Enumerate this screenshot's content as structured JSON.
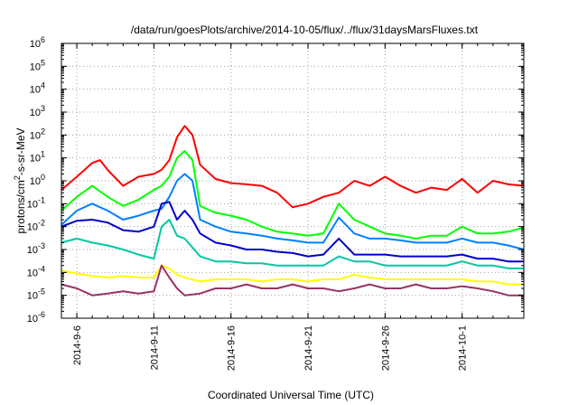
{
  "chart_data": {
    "type": "line",
    "title": "/data/run/goesPlots/archive/2014-10-05/flux/../flux/31daysMarsFluxes.txt",
    "xlabel": "Coordinated Universal Time (UTC)",
    "ylabel": {
      "base": "protons/cm",
      "sup": "2",
      "rest": "-s-sr-MeV"
    },
    "y_scale": "log",
    "ylim": [
      1e-06,
      1000000.0
    ],
    "xlim": [
      "2014-09-05",
      "2014-10-05"
    ],
    "y_ticks": [
      {
        "value": 1e-06,
        "base": "10",
        "exp": "-6"
      },
      {
        "value": 1e-05,
        "base": "10",
        "exp": "-5"
      },
      {
        "value": 0.0001,
        "base": "10",
        "exp": "-4"
      },
      {
        "value": 0.001,
        "base": "10",
        "exp": "-3"
      },
      {
        "value": 0.01,
        "base": "10",
        "exp": "-2"
      },
      {
        "value": 0.1,
        "base": "10",
        "exp": "-1"
      },
      {
        "value": 1,
        "base": "10",
        "exp": "0"
      },
      {
        "value": 10.0,
        "base": "10",
        "exp": "1"
      },
      {
        "value": 100.0,
        "base": "10",
        "exp": "2"
      },
      {
        "value": 1000.0,
        "base": "10",
        "exp": "3"
      },
      {
        "value": 10000.0,
        "base": "10",
        "exp": "4"
      },
      {
        "value": 100000.0,
        "base": "10",
        "exp": "5"
      },
      {
        "value": 1000000.0,
        "base": "10",
        "exp": "6"
      }
    ],
    "x_ticks": [
      {
        "date": "2014-09-06",
        "label": "2014-9-6"
      },
      {
        "date": "2014-09-11",
        "label": "2014-9-11"
      },
      {
        "date": "2014-09-16",
        "label": "2014-9-16"
      },
      {
        "date": "2014-09-21",
        "label": "2014-9-21"
      },
      {
        "date": "2014-09-26",
        "label": "2014-9-26"
      },
      {
        "date": "2014-10-01",
        "label": "2014-10-1"
      }
    ],
    "grid": true,
    "series": [
      {
        "color": "#ff0000",
        "points": [
          [
            "2014-09-05",
            0.4
          ],
          [
            "2014-09-06",
            1.5
          ],
          [
            "2014-09-07",
            6
          ],
          [
            "2014-09-07T12:00",
            8
          ],
          [
            "2014-09-08",
            3
          ],
          [
            "2014-09-09",
            0.6
          ],
          [
            "2014-09-10",
            1.5
          ],
          [
            "2014-09-11",
            2
          ],
          [
            "2014-09-11T12:00",
            3
          ],
          [
            "2014-09-12",
            8
          ],
          [
            "2014-09-12T12:00",
            80
          ],
          [
            "2014-09-13",
            250
          ],
          [
            "2014-09-13T12:00",
            100
          ],
          [
            "2014-09-14",
            5
          ],
          [
            "2014-09-15",
            1.2
          ],
          [
            "2014-09-16",
            0.8
          ],
          [
            "2014-09-17",
            0.7
          ],
          [
            "2014-09-18",
            0.6
          ],
          [
            "2014-09-19",
            0.3
          ],
          [
            "2014-09-20",
            0.07
          ],
          [
            "2014-09-21",
            0.1
          ],
          [
            "2014-09-22",
            0.2
          ],
          [
            "2014-09-23",
            0.3
          ],
          [
            "2014-09-24",
            1
          ],
          [
            "2014-09-25",
            0.6
          ],
          [
            "2014-09-26",
            1.5
          ],
          [
            "2014-09-27",
            0.6
          ],
          [
            "2014-09-28",
            0.3
          ],
          [
            "2014-09-29",
            0.5
          ],
          [
            "2014-09-30",
            0.4
          ],
          [
            "2014-10-01",
            1.2
          ],
          [
            "2014-10-02",
            0.3
          ],
          [
            "2014-10-03",
            1
          ],
          [
            "2014-10-04",
            0.7
          ],
          [
            "2014-10-05",
            0.6
          ]
        ]
      },
      {
        "color": "#00ff00",
        "points": [
          [
            "2014-09-05",
            0.05
          ],
          [
            "2014-09-06",
            0.2
          ],
          [
            "2014-09-07",
            0.6
          ],
          [
            "2014-09-08",
            0.2
          ],
          [
            "2014-09-09",
            0.08
          ],
          [
            "2014-09-10",
            0.15
          ],
          [
            "2014-09-11",
            0.4
          ],
          [
            "2014-09-11T12:00",
            0.6
          ],
          [
            "2014-09-12",
            1.5
          ],
          [
            "2014-09-12T12:00",
            10
          ],
          [
            "2014-09-13",
            20
          ],
          [
            "2014-09-13T12:00",
            8
          ],
          [
            "2014-09-14",
            0.08
          ],
          [
            "2014-09-15",
            0.04
          ],
          [
            "2014-09-16",
            0.03
          ],
          [
            "2014-09-17",
            0.02
          ],
          [
            "2014-09-18",
            0.01
          ],
          [
            "2014-09-19",
            0.006
          ],
          [
            "2014-09-20",
            0.005
          ],
          [
            "2014-09-21",
            0.004
          ],
          [
            "2014-09-22",
            0.005
          ],
          [
            "2014-09-23",
            0.1
          ],
          [
            "2014-09-24",
            0.02
          ],
          [
            "2014-09-25",
            0.01
          ],
          [
            "2014-09-26",
            0.005
          ],
          [
            "2014-09-27",
            0.004
          ],
          [
            "2014-09-28",
            0.003
          ],
          [
            "2014-09-29",
            0.004
          ],
          [
            "2014-09-30",
            0.004
          ],
          [
            "2014-10-01",
            0.01
          ],
          [
            "2014-10-02",
            0.005
          ],
          [
            "2014-10-03",
            0.005
          ],
          [
            "2014-10-04",
            0.006
          ],
          [
            "2014-10-05",
            0.009
          ]
        ]
      },
      {
        "color": "#0080ff",
        "points": [
          [
            "2014-09-05",
            0.012
          ],
          [
            "2014-09-06",
            0.05
          ],
          [
            "2014-09-07",
            0.1
          ],
          [
            "2014-09-08",
            0.05
          ],
          [
            "2014-09-09",
            0.02
          ],
          [
            "2014-09-10",
            0.03
          ],
          [
            "2014-09-11",
            0.05
          ],
          [
            "2014-09-11T12:00",
            0.06
          ],
          [
            "2014-09-12",
            0.2
          ],
          [
            "2014-09-12T12:00",
            1
          ],
          [
            "2014-09-13",
            2
          ],
          [
            "2014-09-13T12:00",
            1
          ],
          [
            "2014-09-14",
            0.02
          ],
          [
            "2014-09-15",
            0.01
          ],
          [
            "2014-09-16",
            0.006
          ],
          [
            "2014-09-17",
            0.005
          ],
          [
            "2014-09-18",
            0.004
          ],
          [
            "2014-09-19",
            0.003
          ],
          [
            "2014-09-20",
            0.0025
          ],
          [
            "2014-09-21",
            0.002
          ],
          [
            "2014-09-22",
            0.002
          ],
          [
            "2014-09-23",
            0.025
          ],
          [
            "2014-09-24",
            0.005
          ],
          [
            "2014-09-25",
            0.003
          ],
          [
            "2014-09-26",
            0.003
          ],
          [
            "2014-09-27",
            0.0025
          ],
          [
            "2014-09-28",
            0.002
          ],
          [
            "2014-09-29",
            0.002
          ],
          [
            "2014-09-30",
            0.002
          ],
          [
            "2014-10-01",
            0.003
          ],
          [
            "2014-10-02",
            0.002
          ],
          [
            "2014-10-03",
            0.002
          ],
          [
            "2014-10-04",
            0.0015
          ],
          [
            "2014-10-05",
            0.001
          ]
        ]
      },
      {
        "color": "#0000cc",
        "points": [
          [
            "2014-09-05",
            0.01
          ],
          [
            "2014-09-06",
            0.018
          ],
          [
            "2014-09-07",
            0.02
          ],
          [
            "2014-09-08",
            0.015
          ],
          [
            "2014-09-09",
            0.007
          ],
          [
            "2014-09-10",
            0.006
          ],
          [
            "2014-09-11",
            0.01
          ],
          [
            "2014-09-11T12:00",
            0.1
          ],
          [
            "2014-09-12",
            0.12
          ],
          [
            "2014-09-12T12:00",
            0.02
          ],
          [
            "2014-09-13",
            0.05
          ],
          [
            "2014-09-13T12:00",
            0.02
          ],
          [
            "2014-09-14",
            0.005
          ],
          [
            "2014-09-15",
            0.002
          ],
          [
            "2014-09-16",
            0.0015
          ],
          [
            "2014-09-17",
            0.001
          ],
          [
            "2014-09-18",
            0.001
          ],
          [
            "2014-09-19",
            0.0008
          ],
          [
            "2014-09-20",
            0.0007
          ],
          [
            "2014-09-21",
            0.0005
          ],
          [
            "2014-09-22",
            0.0006
          ],
          [
            "2014-09-23",
            0.003
          ],
          [
            "2014-09-24",
            0.0006
          ],
          [
            "2014-09-25",
            0.0006
          ],
          [
            "2014-09-26",
            0.0006
          ],
          [
            "2014-09-27",
            0.0005
          ],
          [
            "2014-09-28",
            0.0005
          ],
          [
            "2014-09-29",
            0.0005
          ],
          [
            "2014-09-30",
            0.0005
          ],
          [
            "2014-10-01",
            0.0006
          ],
          [
            "2014-10-02",
            0.0004
          ],
          [
            "2014-10-03",
            0.0004
          ],
          [
            "2014-10-04",
            0.0003
          ],
          [
            "2014-10-05",
            0.0003
          ]
        ]
      },
      {
        "color": "#00c8a0",
        "points": [
          [
            "2014-09-05",
            0.002
          ],
          [
            "2014-09-06",
            0.003
          ],
          [
            "2014-09-07",
            0.002
          ],
          [
            "2014-09-08",
            0.0015
          ],
          [
            "2014-09-09",
            0.001
          ],
          [
            "2014-09-10",
            0.0006
          ],
          [
            "2014-09-11",
            0.0004
          ],
          [
            "2014-09-11T12:00",
            0.01
          ],
          [
            "2014-09-12",
            0.02
          ],
          [
            "2014-09-12T12:00",
            0.004
          ],
          [
            "2014-09-13",
            0.003
          ],
          [
            "2014-09-14",
            0.0005
          ],
          [
            "2014-09-15",
            0.0003
          ],
          [
            "2014-09-16",
            0.0003
          ],
          [
            "2014-09-17",
            0.00025
          ],
          [
            "2014-09-18",
            0.00025
          ],
          [
            "2014-09-19",
            0.0002
          ],
          [
            "2014-09-20",
            0.0002
          ],
          [
            "2014-09-21",
            0.0002
          ],
          [
            "2014-09-22",
            0.0002
          ],
          [
            "2014-09-23",
            0.0005
          ],
          [
            "2014-09-24",
            0.0003
          ],
          [
            "2014-09-25",
            0.0003
          ],
          [
            "2014-09-26",
            0.0002
          ],
          [
            "2014-09-27",
            0.0002
          ],
          [
            "2014-09-28",
            0.0002
          ],
          [
            "2014-09-29",
            0.0002
          ],
          [
            "2014-09-30",
            0.0002
          ],
          [
            "2014-10-01",
            0.0003
          ],
          [
            "2014-10-02",
            0.0002
          ],
          [
            "2014-10-03",
            0.0002
          ],
          [
            "2014-10-04",
            0.00015
          ],
          [
            "2014-10-05",
            0.00015
          ]
        ]
      },
      {
        "color": "#ffff00",
        "points": [
          [
            "2014-09-05",
            0.00012
          ],
          [
            "2014-09-06",
            9e-05
          ],
          [
            "2014-09-07",
            7e-05
          ],
          [
            "2014-09-08",
            6e-05
          ],
          [
            "2014-09-09",
            7e-05
          ],
          [
            "2014-09-10",
            6e-05
          ],
          [
            "2014-09-11",
            6e-05
          ],
          [
            "2014-09-11T12:00",
            0.0002
          ],
          [
            "2014-09-12",
            0.00015
          ],
          [
            "2014-09-12T12:00",
            8e-05
          ],
          [
            "2014-09-13",
            6e-05
          ],
          [
            "2014-09-14",
            4e-05
          ],
          [
            "2014-09-15",
            5e-05
          ],
          [
            "2014-09-16",
            5e-05
          ],
          [
            "2014-09-17",
            5e-05
          ],
          [
            "2014-09-18",
            4e-05
          ],
          [
            "2014-09-19",
            5e-05
          ],
          [
            "2014-09-20",
            5e-05
          ],
          [
            "2014-09-21",
            4e-05
          ],
          [
            "2014-09-22",
            5e-05
          ],
          [
            "2014-09-23",
            5e-05
          ],
          [
            "2014-09-24",
            8e-05
          ],
          [
            "2014-09-25",
            6e-05
          ],
          [
            "2014-09-26",
            5e-05
          ],
          [
            "2014-09-27",
            5e-05
          ],
          [
            "2014-09-28",
            5e-05
          ],
          [
            "2014-09-29",
            5e-05
          ],
          [
            "2014-09-30",
            5e-05
          ],
          [
            "2014-10-01",
            5e-05
          ],
          [
            "2014-10-02",
            4e-05
          ],
          [
            "2014-10-03",
            4e-05
          ],
          [
            "2014-10-04",
            3e-05
          ],
          [
            "2014-10-05",
            3e-05
          ]
        ]
      },
      {
        "color": "#993366",
        "points": [
          [
            "2014-09-05",
            3e-05
          ],
          [
            "2014-09-06",
            2e-05
          ],
          [
            "2014-09-07",
            1e-05
          ],
          [
            "2014-09-08",
            1.2e-05
          ],
          [
            "2014-09-09",
            1.5e-05
          ],
          [
            "2014-09-10",
            1.2e-05
          ],
          [
            "2014-09-11",
            1.5e-05
          ],
          [
            "2014-09-11T12:00",
            0.0002
          ],
          [
            "2014-09-12",
            6e-05
          ],
          [
            "2014-09-12T12:00",
            2e-05
          ],
          [
            "2014-09-13",
            1e-05
          ],
          [
            "2014-09-14",
            1.2e-05
          ],
          [
            "2014-09-15",
            2e-05
          ],
          [
            "2014-09-16",
            2e-05
          ],
          [
            "2014-09-17",
            3e-05
          ],
          [
            "2014-09-18",
            2e-05
          ],
          [
            "2014-09-19",
            2e-05
          ],
          [
            "2014-09-20",
            3e-05
          ],
          [
            "2014-09-21",
            2e-05
          ],
          [
            "2014-09-22",
            2e-05
          ],
          [
            "2014-09-23",
            1.5e-05
          ],
          [
            "2014-09-24",
            2e-05
          ],
          [
            "2014-09-25",
            3e-05
          ],
          [
            "2014-09-26",
            2e-05
          ],
          [
            "2014-09-27",
            2e-05
          ],
          [
            "2014-09-28",
            3e-05
          ],
          [
            "2014-09-29",
            2e-05
          ],
          [
            "2014-09-30",
            2e-05
          ],
          [
            "2014-10-01",
            2.5e-05
          ],
          [
            "2014-10-02",
            2e-05
          ],
          [
            "2014-10-03",
            1.5e-05
          ],
          [
            "2014-10-04",
            1e-05
          ],
          [
            "2014-10-05",
            1e-05
          ]
        ]
      }
    ]
  }
}
